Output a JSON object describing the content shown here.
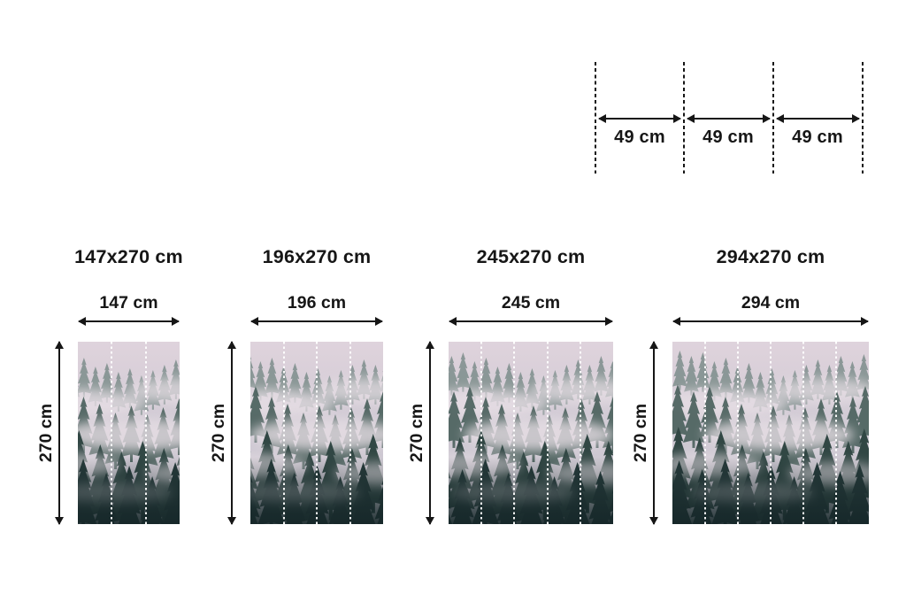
{
  "page": {
    "background": "#ffffff",
    "ink_color": "#161616"
  },
  "panel_diagram": {
    "segments": [
      {
        "label": "49 cm"
      },
      {
        "label": "49 cm"
      },
      {
        "label": "49 cm"
      }
    ]
  },
  "variants": [
    {
      "title": "147x270 cm",
      "width_label": "147 cm",
      "height_label": "270 cm",
      "panels": 3
    },
    {
      "title": "196x270 cm",
      "width_label": "196 cm",
      "height_label": "270 cm",
      "panels": 4
    },
    {
      "title": "245x270 cm",
      "width_label": "245 cm",
      "height_label": "270 cm",
      "panels": 5
    },
    {
      "title": "294x270 cm",
      "width_label": "294 cm",
      "height_label": "270 cm",
      "panels": 6
    }
  ],
  "mural": {
    "subject": "foggy-mountain-forest",
    "divider_line_color": "#ffffff",
    "sky_top": "#dfd3dc",
    "sky_mid": "#d0cad4",
    "sky_bottom": "#c4c1cb",
    "fog_color": "#e6dee4",
    "tree_far_color": "#6d827e",
    "tree_mid_color": "#4c625e",
    "tree_near_color": "#314744",
    "tree_dark_color": "#263a3a"
  }
}
